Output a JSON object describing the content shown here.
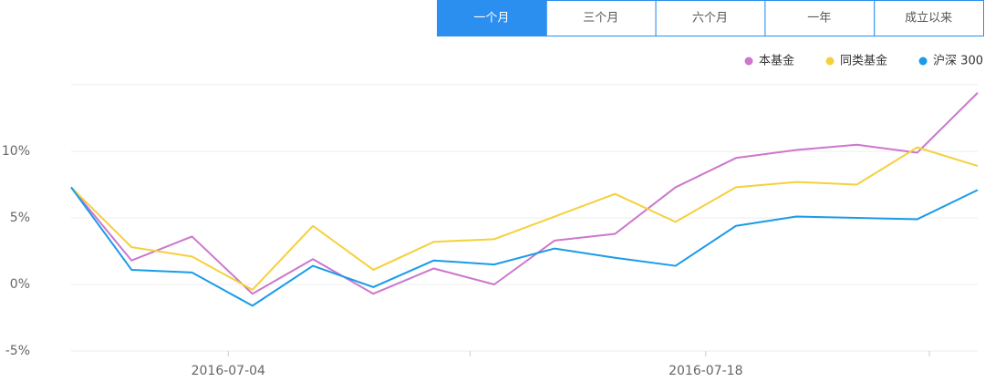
{
  "tabs": [
    "一个月",
    "三个月",
    "六个月",
    "一年",
    "成立以来"
  ],
  "chart_data": {
    "type": "line",
    "x": [
      0,
      1,
      2,
      3,
      4,
      5,
      6,
      7,
      8,
      9,
      10,
      11,
      12,
      13,
      14,
      15
    ],
    "xlim": [
      0,
      15
    ],
    "xticks": [
      {
        "value": 2.6,
        "label": "2016-07-04"
      },
      {
        "value": 10.5,
        "label": "2016-07-18"
      }
    ],
    "minor_xticks": [
      6.6,
      14.2
    ],
    "ylim": [
      -5,
      15
    ],
    "yticks": [
      {
        "value": -5,
        "label": "-5%"
      },
      {
        "value": 0,
        "label": "0%"
      },
      {
        "value": 5,
        "label": "5%"
      },
      {
        "value": 10,
        "label": "10%"
      }
    ],
    "grid": true,
    "legend": "top-right",
    "series": [
      {
        "name": "本基金",
        "color": "#cc77cc",
        "values": [
          7.3,
          1.8,
          3.6,
          -0.7,
          1.9,
          -0.7,
          1.2,
          0,
          3.3,
          3.8,
          7.3,
          9.5,
          10.1,
          10.5,
          9.9,
          14.4
        ]
      },
      {
        "name": "同类基金",
        "color": "#f5d03c",
        "values": [
          7.3,
          2.8,
          2.1,
          -0.4,
          4.4,
          1.1,
          3.2,
          3.4,
          5.1,
          6.8,
          4.7,
          7.3,
          7.7,
          7.5,
          10.3,
          8.9
        ]
      },
      {
        "name": "沪深 300",
        "color": "#1a9be8",
        "values": [
          7.3,
          1.1,
          0.9,
          -1.6,
          1.4,
          -0.2,
          1.8,
          1.5,
          2.7,
          2.0,
          1.4,
          4.4,
          5.1,
          5.0,
          4.9,
          7.1
        ]
      }
    ]
  }
}
